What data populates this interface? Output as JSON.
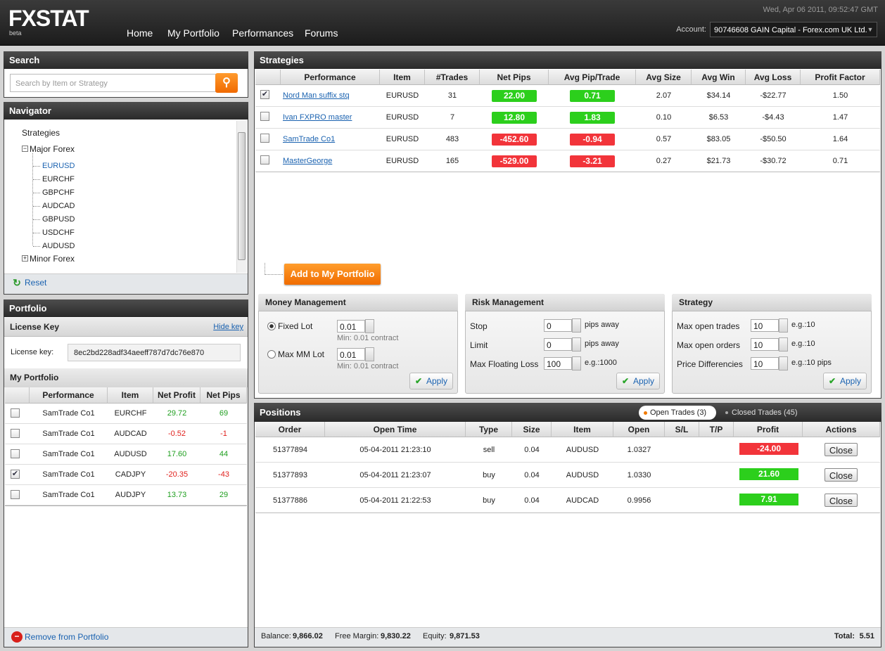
{
  "header": {
    "logo": "FXSTAT",
    "beta": "beta",
    "nav": [
      "Home",
      "My Portfolio",
      "Performances",
      "Forums"
    ],
    "datetime": "Wed, Apr 06 2011, 09:52:47 GMT",
    "account_label": "Account:",
    "account": "90746608 GAIN Capital - Forex.com UK Ltd."
  },
  "search": {
    "title": "Search",
    "placeholder": "Search by Item or Strategy"
  },
  "navigator": {
    "title": "Navigator",
    "root": "Strategies",
    "groups": [
      {
        "label": "Major Forex",
        "expanded": true,
        "items": [
          "EURUSD",
          "EURCHF",
          "GBPCHF",
          "AUDCAD",
          "GBPUSD",
          "USDCHF",
          "AUDUSD"
        ],
        "selected": 0
      },
      {
        "label": "Minor Forex",
        "expanded": false
      }
    ],
    "reset": "Reset"
  },
  "portfolio": {
    "title": "Portfolio",
    "license_title": "License Key",
    "hide_key": "Hide key",
    "license_label": "License key:",
    "license_key": "8ec2bd228adf34aeeff787d7dc76e870",
    "my_portfolio": "My Portfolio",
    "columns": [
      "Performance",
      "Item",
      "Net Profit",
      "Net Pips"
    ],
    "rows": [
      {
        "checked": false,
        "cells": [
          "SamTrade Co1",
          "EURCHF",
          "29.72",
          "69"
        ]
      },
      {
        "checked": false,
        "cells": [
          "SamTrade Co1",
          "AUDCAD",
          "-0.52",
          "-1"
        ]
      },
      {
        "checked": false,
        "cells": [
          "SamTrade Co1",
          "AUDUSD",
          "17.60",
          "44"
        ]
      },
      {
        "checked": true,
        "cells": [
          "SamTrade Co1",
          "CADJPY",
          "-20.35",
          "-43"
        ]
      },
      {
        "checked": false,
        "cells": [
          "SamTrade Co1",
          "AUDJPY",
          "13.73",
          "29"
        ]
      }
    ],
    "remove": "Remove from Portfolio"
  },
  "strategies": {
    "title": "Strategies",
    "columns": [
      "Performance",
      "Item",
      "#Trades",
      "Net Pips",
      "Avg Pip/Trade",
      "Avg Size",
      "Avg Win",
      "Avg Loss",
      "Profit Factor"
    ],
    "rows": [
      {
        "checked": true,
        "cells": [
          "Nord Man suffix stq",
          "EURUSD",
          "31",
          "22.00",
          "0.71",
          "2.07",
          "$34.14",
          "-$22.77",
          "1.50"
        ]
      },
      {
        "checked": false,
        "cells": [
          "Ivan FXPRO master",
          "EURUSD",
          "7",
          "12.80",
          "1.83",
          "0.10",
          "$6.53",
          "-$4.43",
          "1.47"
        ]
      },
      {
        "checked": false,
        "cells": [
          "SamTrade Co1",
          "EURUSD",
          "483",
          "-452.60",
          "-0.94",
          "0.57",
          "$83.05",
          "-$50.50",
          "1.64"
        ]
      },
      {
        "checked": false,
        "cells": [
          "MasterGeorge",
          "EURUSD",
          "165",
          "-529.00",
          "-3.21",
          "0.27",
          "$21.73",
          "-$30.72",
          "0.71"
        ]
      }
    ],
    "add_button": "Add to My Portfolio"
  },
  "settings": [
    {
      "title": "Money Management",
      "fields": [
        {
          "label": "Fixed Lot",
          "value": "0.01",
          "hint": "Min: 0.01 contract",
          "radio": true,
          "selected": true
        },
        {
          "label": "Max MM Lot",
          "value": "0.01",
          "hint": "Min: 0.01 contract",
          "radio": true,
          "selected": false
        }
      ],
      "apply": "Apply"
    },
    {
      "title": "Risk Management",
      "fields": [
        {
          "label": "Stop",
          "value": "0",
          "suffix": "pips away"
        },
        {
          "label": "Limit",
          "value": "0",
          "suffix": "pips away"
        },
        {
          "label": "Max Floating Loss",
          "value": "100",
          "suffix": "e.g.:1000"
        }
      ],
      "apply": "Apply"
    },
    {
      "title": "Strategy",
      "fields": [
        {
          "label": "Max open trades",
          "value": "10",
          "suffix": "e.g.:10"
        },
        {
          "label": "Max open orders",
          "value": "10",
          "suffix": "e.g.:10"
        },
        {
          "label": "Price Differencies",
          "value": "10",
          "suffix": "e.g.:10 pips"
        }
      ],
      "apply": "Apply"
    }
  ],
  "positions": {
    "title": "Positions",
    "tabs": [
      "Open Trades (3)",
      "Closed Trades (45)"
    ],
    "columns": [
      "Order",
      "Open Time",
      "Type",
      "Size",
      "Item",
      "Open",
      "S/L",
      "T/P",
      "Profit",
      "Actions"
    ],
    "rows": [
      [
        "51377894",
        "05-04-2011 21:23:10",
        "sell",
        "0.04",
        "AUDUSD",
        "1.0327",
        "-24.00"
      ],
      [
        "51377893",
        "05-04-2011 21:23:07",
        "buy",
        "0.04",
        "AUDUSD",
        "1.0330",
        "21.60"
      ],
      [
        "51377886",
        "05-04-2011 21:22:53",
        "buy",
        "0.04",
        "AUDCAD",
        "0.9956",
        "7.91"
      ]
    ],
    "close": "Close",
    "balance_label": "Balance:",
    "balance": "9,866.02",
    "free_margin_label": "Free Margin:",
    "free_margin": "9,830.22",
    "equity_label": "Equity:",
    "equity": "9,871.53",
    "total_label": "Total:",
    "total": "5.51"
  }
}
